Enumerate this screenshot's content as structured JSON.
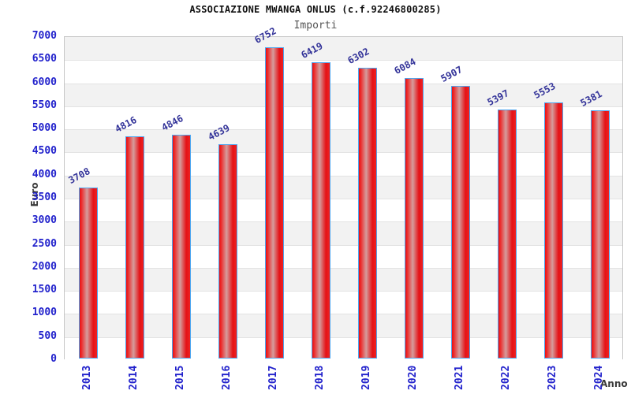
{
  "chart_data": {
    "type": "bar",
    "title": "ASSOCIAZIONE MWANGA ONLUS (c.f.92246800285)",
    "subtitle": "Importi",
    "xlabel": "Anno",
    "ylabel": "Euro",
    "categories": [
      "2013",
      "2014",
      "2015",
      "2016",
      "2017",
      "2018",
      "2019",
      "2020",
      "2021",
      "2022",
      "2023",
      "2024"
    ],
    "values": [
      3708,
      4816,
      4846,
      4639,
      6752,
      6419,
      6302,
      6084,
      5907,
      5397,
      5553,
      5381
    ],
    "bar_value_labels": [
      "3708",
      "4816",
      "4846",
      "4639",
      "6752",
      "6419",
      "6302",
      "6084",
      "5907",
      "5397",
      "5553",
      "5381"
    ],
    "ylim": [
      0,
      7000
    ],
    "ytick_step": 500,
    "yticks": [
      "0",
      "500",
      "1000",
      "1500",
      "2000",
      "2500",
      "3000",
      "3500",
      "4000",
      "4500",
      "5000",
      "5500",
      "6000",
      "6500",
      "7000"
    ],
    "grid": "horizontal alternating bands, gridline every 500",
    "legend_position": "none"
  },
  "colors": {
    "tick_blue": "#2222cc",
    "value_navy": "#333399",
    "bar_border": "#4da6f0",
    "bar_red": "#ee2222",
    "bar_red_dark": "#e41217",
    "bar_mid": "#d59c9c",
    "band_gray": "#f2f2f2",
    "grid_color": "#e3e3e3",
    "plot_border": "#c6c6c6",
    "title_color": "#111111",
    "subtitle_color": "#555555",
    "axis_title_color": "#3a3a3a",
    "background": "#ffffff"
  }
}
